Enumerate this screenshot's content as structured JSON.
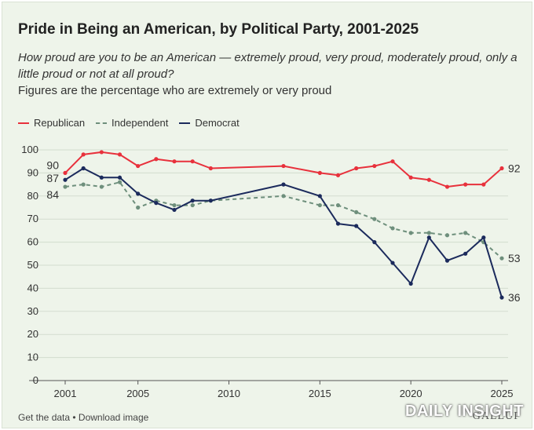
{
  "header": {
    "title": "Pride in Being an American, by Political Party, 2001-2025",
    "subtitle": "How proud are you to be an American — extremely proud, very proud, moderately proud, only a little proud or not at all proud?",
    "note": "Figures are the percentage who are extremely or very proud"
  },
  "footer": {
    "get_data": "Get the data",
    "separator": " • ",
    "download": "Download image",
    "brand": "DAILY INSIGHT",
    "publisher": "GALLUP"
  },
  "chart_data": {
    "type": "line",
    "title": "Pride in Being an American, by Political Party, 2001-2025",
    "xlabel": "",
    "ylabel": "",
    "xlim": [
      2001,
      2025
    ],
    "ylim": [
      0,
      100
    ],
    "y_ticks": [
      0,
      10,
      20,
      30,
      40,
      50,
      60,
      70,
      80,
      90,
      100
    ],
    "x_ticks": [
      2001,
      2005,
      2010,
      2015,
      2020,
      2025
    ],
    "grid": "horizontal",
    "legend": "top-left",
    "series": [
      {
        "name": "Republican",
        "color": "#e8313c",
        "style": "solid",
        "x": [
          2001,
          2002,
          2003,
          2004,
          2005,
          2006,
          2007,
          2008,
          2009,
          2013,
          2015,
          2016,
          2017,
          2018,
          2019,
          2020,
          2021,
          2022,
          2023,
          2024,
          2025
        ],
        "values": [
          90,
          98,
          99,
          98,
          93,
          96,
          95,
          95,
          92,
          93,
          90,
          89,
          92,
          93,
          95,
          88,
          87,
          84,
          85,
          85,
          92
        ],
        "start_label": "90",
        "end_label": "92"
      },
      {
        "name": "Independent",
        "color": "#6e8f7c",
        "style": "dashed",
        "x": [
          2001,
          2002,
          2003,
          2004,
          2005,
          2006,
          2007,
          2008,
          2009,
          2013,
          2015,
          2016,
          2017,
          2018,
          2019,
          2020,
          2021,
          2022,
          2023,
          2024,
          2025
        ],
        "values": [
          84,
          85,
          84,
          86,
          75,
          78,
          76,
          76,
          78,
          80,
          76,
          76,
          73,
          70,
          66,
          64,
          64,
          63,
          64,
          60,
          53
        ],
        "start_label": "84",
        "end_label": "53"
      },
      {
        "name": "Democrat",
        "color": "#1b2a5c",
        "style": "solid",
        "x": [
          2001,
          2002,
          2003,
          2004,
          2005,
          2006,
          2007,
          2008,
          2009,
          2013,
          2015,
          2016,
          2017,
          2018,
          2019,
          2020,
          2021,
          2022,
          2023,
          2024,
          2025
        ],
        "values": [
          87,
          92,
          88,
          88,
          81,
          77,
          74,
          78,
          78,
          85,
          80,
          68,
          67,
          60,
          51,
          42,
          62,
          52,
          55,
          62,
          36
        ],
        "start_label": "87",
        "end_label": "36"
      }
    ]
  }
}
